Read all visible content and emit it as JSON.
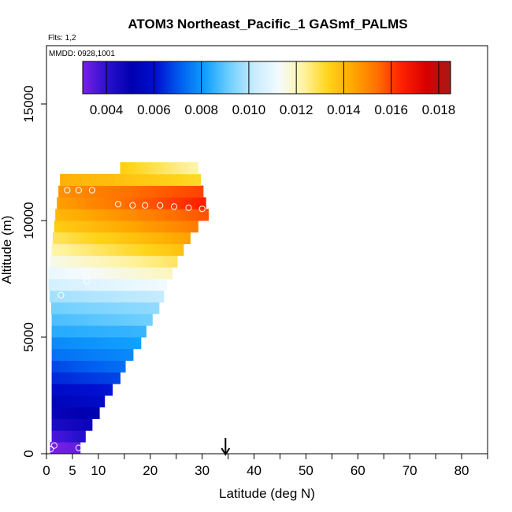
{
  "chart_data": {
    "type": "heatmap",
    "title": "ATOM3 Northeast_Pacific_1 GASmf_PALMS",
    "flights_note": "Flts: 1,2",
    "dates_note": "MMDD: 0928,1001",
    "xlabel": "Latitude (deg N)",
    "ylabel": "Altitude (m)",
    "xlim": [
      0,
      85
    ],
    "ylim": [
      0,
      17500
    ],
    "x_ticks": [
      0,
      5,
      10,
      20,
      30,
      40,
      50,
      60,
      70,
      80
    ],
    "x_tick_labels": [
      "0",
      "5",
      "10",
      "20",
      "30",
      "40",
      "50",
      "60",
      "70",
      "80"
    ],
    "y_ticks": [
      0,
      5000,
      10000,
      15000
    ],
    "y_tick_labels": [
      "0",
      "5000",
      "10000",
      "15000"
    ],
    "colorbar": {
      "min": 0.003,
      "max": 0.0185,
      "ticks": [
        0.004,
        0.006,
        0.008,
        0.01,
        0.012,
        0.014,
        0.016,
        0.018
      ],
      "tick_labels": [
        "0.004",
        "0.006",
        "0.008",
        "0.010",
        "0.012",
        "0.014",
        "0.016",
        "0.018"
      ],
      "colors": [
        "#7a20e6",
        "#2a10d0",
        "#0000b0",
        "#0010d0",
        "#0060f0",
        "#10a0ff",
        "#70d0ff",
        "#c8ecff",
        "#f4fbff",
        "#fff3a0",
        "#ffd41a",
        "#ffa800",
        "#ff7000",
        "#ff2000",
        "#d80000",
        "#a81818"
      ]
    },
    "marker": {
      "latitude": 34.5,
      "label": "arrow"
    },
    "bands": [
      {
        "y0": 0,
        "y1": 500,
        "x0": 0.7,
        "x1": 6.5,
        "vals": [
          0.003,
          0.0033
        ]
      },
      {
        "y0": 500,
        "y1": 1000,
        "x0": 1.0,
        "x1": 7.5,
        "vals": [
          0.0036,
          0.0042
        ]
      },
      {
        "y0": 1000,
        "y1": 1500,
        "x0": 1.0,
        "x1": 8.8,
        "vals": [
          0.0044,
          0.0048
        ]
      },
      {
        "y0": 1500,
        "y1": 2000,
        "x0": 1.0,
        "x1": 10.2,
        "vals": [
          0.0048,
          0.0052
        ]
      },
      {
        "y0": 2000,
        "y1": 2500,
        "x0": 1.0,
        "x1": 11.2,
        "vals": [
          0.0054,
          0.0058
        ]
      },
      {
        "y0": 2500,
        "y1": 3000,
        "x0": 1.0,
        "x1": 12.7,
        "vals": [
          0.0058,
          0.0062
        ]
      },
      {
        "y0": 3000,
        "y1": 3500,
        "x0": 1.0,
        "x1": 14.2,
        "vals": [
          0.0064,
          0.0068
        ]
      },
      {
        "y0": 3500,
        "y1": 4000,
        "x0": 1.0,
        "x1": 15.2,
        "vals": [
          0.0068,
          0.0074
        ]
      },
      {
        "y0": 4000,
        "y1": 4500,
        "x0": 1.0,
        "x1": 16.7,
        "vals": [
          0.0074,
          0.0078
        ]
      },
      {
        "y0": 4500,
        "y1": 5000,
        "x0": 1.0,
        "x1": 18.2,
        "vals": [
          0.0078,
          0.0082
        ]
      },
      {
        "y0": 5000,
        "y1": 5500,
        "x0": 1.0,
        "x1": 19.2,
        "vals": [
          0.0084,
          0.0086
        ]
      },
      {
        "y0": 5500,
        "y1": 6000,
        "x0": 1.0,
        "x1": 20.4,
        "vals": [
          0.0088,
          0.0092
        ]
      },
      {
        "y0": 6000,
        "y1": 6500,
        "x0": 0.9,
        "x1": 21.7,
        "vals": [
          0.0092,
          0.0096
        ]
      },
      {
        "y0": 6500,
        "y1": 7000,
        "x0": 0.6,
        "x1": 22.6,
        "vals": [
          0.0098,
          0.0102
        ]
      },
      {
        "y0": 7000,
        "y1": 7500,
        "x0": 0.4,
        "x1": 23.2,
        "vals": [
          0.0105,
          0.0112
        ]
      },
      {
        "y0": 7500,
        "y1": 8000,
        "x0": 0.4,
        "x1": 24.2,
        "vals": [
          0.011,
          0.012
        ]
      },
      {
        "y0": 8000,
        "y1": 8500,
        "x0": 0.7,
        "x1": 25.2,
        "vals": [
          0.0115,
          0.0128
        ]
      },
      {
        "y0": 8500,
        "y1": 9000,
        "x0": 1.0,
        "x1": 26.4,
        "vals": [
          0.0122,
          0.0138
        ]
      },
      {
        "y0": 9000,
        "y1": 9500,
        "x0": 1.2,
        "x1": 27.7,
        "vals": [
          0.0128,
          0.0145
        ]
      },
      {
        "y0": 9500,
        "y1": 10000,
        "x0": 1.5,
        "x1": 29.2,
        "vals": [
          0.0135,
          0.0152
        ]
      },
      {
        "y0": 10000,
        "y1": 10500,
        "x0": 1.7,
        "x1": 31.2,
        "vals": [
          0.014,
          0.0158
        ]
      },
      {
        "y0": 10500,
        "y1": 11000,
        "x0": 2.0,
        "x1": 30.7,
        "vals": [
          0.0145,
          0.0165
        ]
      },
      {
        "y0": 11000,
        "y1": 11500,
        "x0": 2.3,
        "x1": 30.2,
        "vals": [
          0.0148,
          0.016
        ]
      },
      {
        "y0": 11500,
        "y1": 12000,
        "x0": 2.6,
        "x1": 29.7,
        "vals": [
          0.0142,
          0.0132
        ]
      },
      {
        "y0": 12000,
        "y1": 12500,
        "x0": 14.2,
        "x1": 29.2,
        "vals": [
          0.0135,
          0.0122
        ]
      }
    ],
    "observations": [
      {
        "x": 0.8,
        "y": 200
      },
      {
        "x": 1.5,
        "y": 350
      },
      {
        "x": 6.2,
        "y": 250
      },
      {
        "x": 2.8,
        "y": 6800
      },
      {
        "x": 7.8,
        "y": 7400
      },
      {
        "x": 4.0,
        "y": 11300
      },
      {
        "x": 6.2,
        "y": 11300
      },
      {
        "x": 8.8,
        "y": 11300
      },
      {
        "x": 13.8,
        "y": 10700
      },
      {
        "x": 16.6,
        "y": 10650
      },
      {
        "x": 19.0,
        "y": 10650
      },
      {
        "x": 21.9,
        "y": 10650
      },
      {
        "x": 24.6,
        "y": 10600
      },
      {
        "x": 27.4,
        "y": 10550
      },
      {
        "x": 30.0,
        "y": 10500
      }
    ]
  }
}
